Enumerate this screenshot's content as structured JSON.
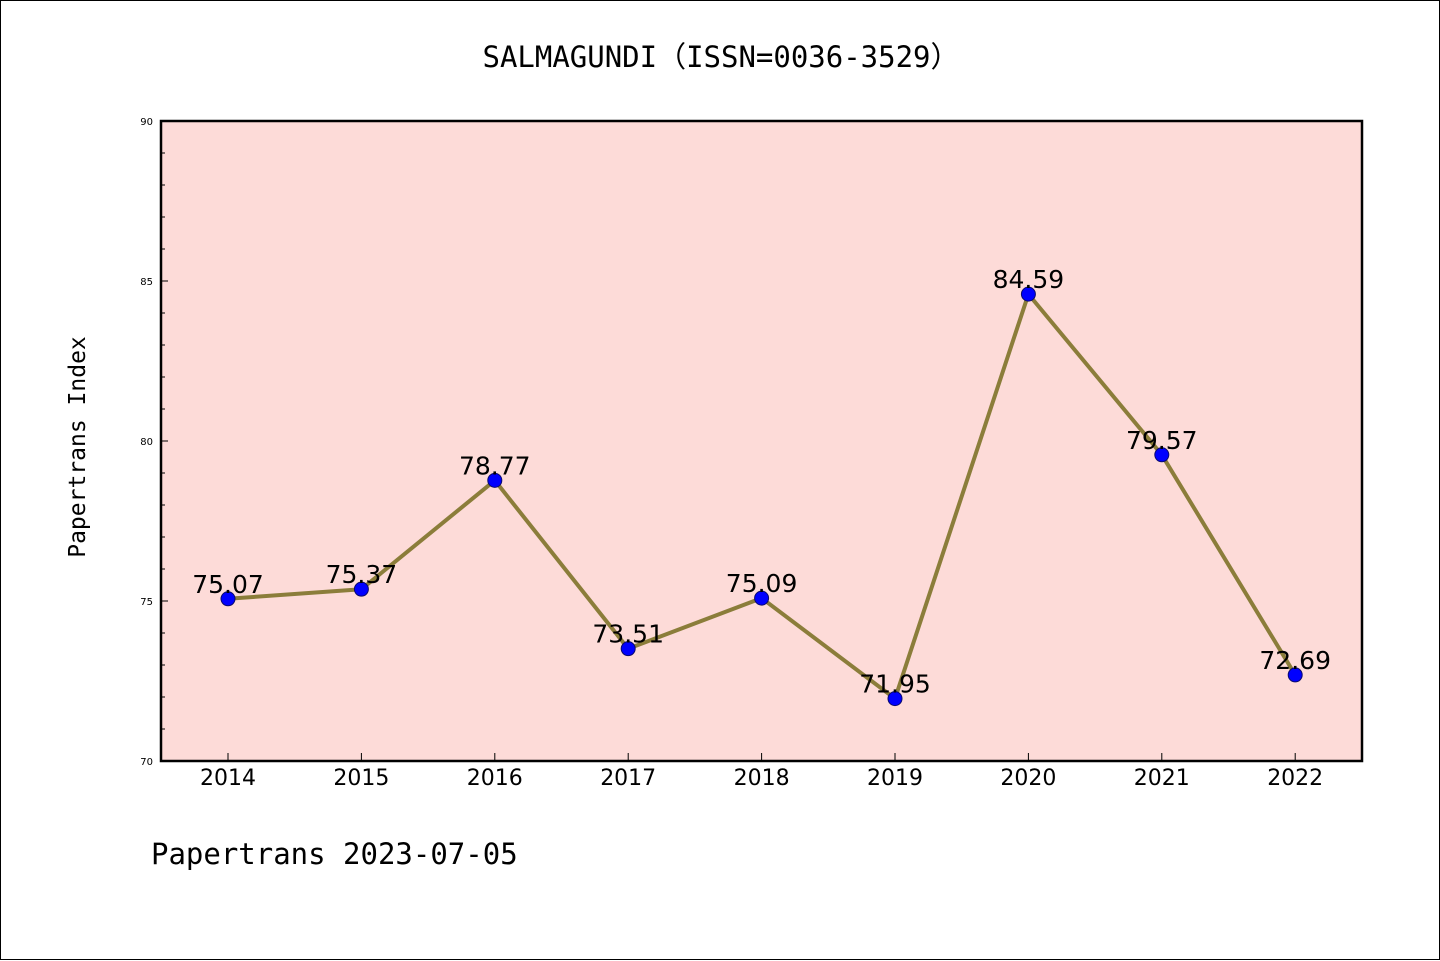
{
  "chart_data": {
    "type": "line",
    "title": "SALMAGUNDI（ISSN=0036-3529）",
    "ylabel": "Papertrans Index",
    "xlabel": "",
    "footer": "Papertrans 2023-07-05",
    "categories": [
      "2014",
      "2015",
      "2016",
      "2017",
      "2018",
      "2019",
      "2020",
      "2021",
      "2022"
    ],
    "series": [
      {
        "values": [
          75.07,
          75.37,
          78.77,
          73.51,
          75.09,
          71.95,
          84.59,
          79.57,
          72.69
        ],
        "labels": [
          "75.07",
          "75.37",
          "78.77",
          "73.51",
          "75.09",
          "71.95",
          "84.59",
          "79.57",
          "72.69"
        ]
      }
    ],
    "ylim": [
      70,
      90
    ],
    "yticks": [
      "70",
      "75",
      "80",
      "85",
      "90"
    ],
    "grid": false,
    "colors": {
      "plot_background": "#fddbd8",
      "line": "#8b7d3a",
      "marker": "#0000ff",
      "marker_edge": "#0a0a6e"
    }
  }
}
